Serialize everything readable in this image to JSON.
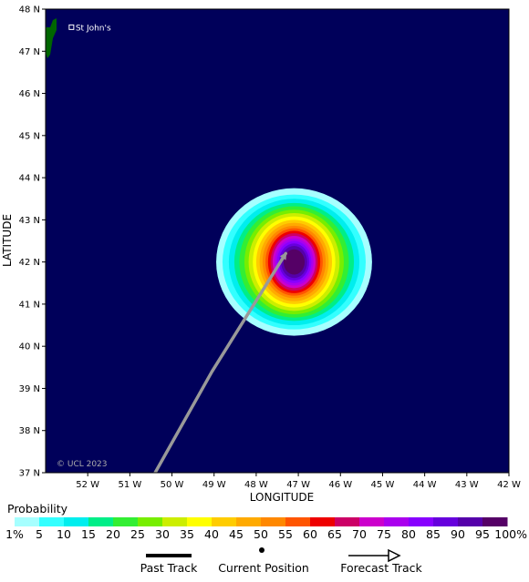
{
  "map": {
    "background_color": "#00005a",
    "land_color": "#006600",
    "lon_range": [
      -53,
      -42
    ],
    "lat_range": [
      37,
      48
    ],
    "x_ticks": [
      {
        "lon": -52,
        "label": "52 W"
      },
      {
        "lon": -51,
        "label": "51 W"
      },
      {
        "lon": -50,
        "label": "50 W"
      },
      {
        "lon": -49,
        "label": "49 W"
      },
      {
        "lon": -48,
        "label": "48 W"
      },
      {
        "lon": -47,
        "label": "47 W"
      },
      {
        "lon": -46,
        "label": "46 W"
      },
      {
        "lon": -45,
        "label": "45 W"
      },
      {
        "lon": -44,
        "label": "44 W"
      },
      {
        "lon": -43,
        "label": "43 W"
      },
      {
        "lon": -42,
        "label": "42 W"
      }
    ],
    "y_ticks": [
      {
        "lat": 48,
        "label": "48 N"
      },
      {
        "lat": 47,
        "label": "47 N"
      },
      {
        "lat": 46,
        "label": "46 N"
      },
      {
        "lat": 45,
        "label": "45 N"
      },
      {
        "lat": 44,
        "label": "44 N"
      },
      {
        "lat": 43,
        "label": "43 N"
      },
      {
        "lat": 42,
        "label": "42 N"
      },
      {
        "lat": 41,
        "label": "41 N"
      },
      {
        "lat": 40,
        "label": "40 N"
      },
      {
        "lat": 39,
        "label": "39 N"
      },
      {
        "lat": 38,
        "label": "38 N"
      },
      {
        "lat": 37,
        "label": "37 N"
      }
    ],
    "xlabel": "LONGITUDE",
    "ylabel": "LATITUDE",
    "city": {
      "name": "St John's",
      "lon": -52.7,
      "lat": 47.56
    },
    "copyright": "© UCL 2023",
    "forecast_track": {
      "color": "#999999",
      "points": [
        [
          -50.4,
          37
        ],
        [
          -49.05,
          39.4
        ],
        [
          -47.3,
          42.2
        ]
      ]
    },
    "probability_field": {
      "center": {
        "lon": -47.1,
        "lat": 42.0
      },
      "levels": [
        {
          "prob": 1,
          "half_width_lon": 1.85,
          "half_height_lat": 1.75
        },
        {
          "prob": 5,
          "half_width_lon": 1.7,
          "half_height_lat": 1.6
        },
        {
          "prob": 10,
          "half_width_lon": 1.55,
          "half_height_lat": 1.5
        },
        {
          "prob": 15,
          "half_width_lon": 1.42,
          "half_height_lat": 1.4
        },
        {
          "prob": 20,
          "half_width_lon": 1.3,
          "half_height_lat": 1.32
        },
        {
          "prob": 25,
          "half_width_lon": 1.18,
          "half_height_lat": 1.24
        },
        {
          "prob": 30,
          "half_width_lon": 1.08,
          "half_height_lat": 1.16
        },
        {
          "prob": 35,
          "half_width_lon": 0.98,
          "half_height_lat": 1.08
        },
        {
          "prob": 40,
          "half_width_lon": 0.9,
          "half_height_lat": 1.0
        },
        {
          "prob": 45,
          "half_width_lon": 0.82,
          "half_height_lat": 0.93
        },
        {
          "prob": 50,
          "half_width_lon": 0.75,
          "half_height_lat": 0.86
        },
        {
          "prob": 55,
          "half_width_lon": 0.68,
          "half_height_lat": 0.8
        },
        {
          "prob": 60,
          "half_width_lon": 0.62,
          "half_height_lat": 0.74
        },
        {
          "prob": 65,
          "half_width_lon": 0.56,
          "half_height_lat": 0.68
        },
        {
          "prob": 70,
          "half_width_lon": 0.51,
          "half_height_lat": 0.62
        },
        {
          "prob": 75,
          "half_width_lon": 0.46,
          "half_height_lat": 0.56
        },
        {
          "prob": 80,
          "half_width_lon": 0.41,
          "half_height_lat": 0.5
        },
        {
          "prob": 85,
          "half_width_lon": 0.36,
          "half_height_lat": 0.44
        },
        {
          "prob": 90,
          "half_width_lon": 0.31,
          "half_height_lat": 0.38
        },
        {
          "prob": 95,
          "half_width_lon": 0.25,
          "half_height_lat": 0.3
        }
      ]
    }
  },
  "legend": {
    "title": "Probability",
    "colors": [
      "#a6ffff",
      "#33ffff",
      "#00eeee",
      "#00ee88",
      "#33ee33",
      "#77ee00",
      "#ccee00",
      "#ffff00",
      "#ffcc00",
      "#ffaa00",
      "#ff8800",
      "#ff5500",
      "#ee0000",
      "#cc0066",
      "#cc00cc",
      "#aa00ee",
      "#8800ff",
      "#6600dd",
      "#5500aa",
      "#550066"
    ],
    "labels": [
      "1%",
      "5",
      "10",
      "15",
      "20",
      "25",
      "30",
      "35",
      "40",
      "45",
      "50",
      "55",
      "60",
      "65",
      "70",
      "75",
      "80",
      "85",
      "90",
      "95",
      "100%"
    ],
    "keys": {
      "past_track": "Past Track",
      "current_position": "Current Position",
      "forecast_track": "Forecast Track"
    }
  }
}
